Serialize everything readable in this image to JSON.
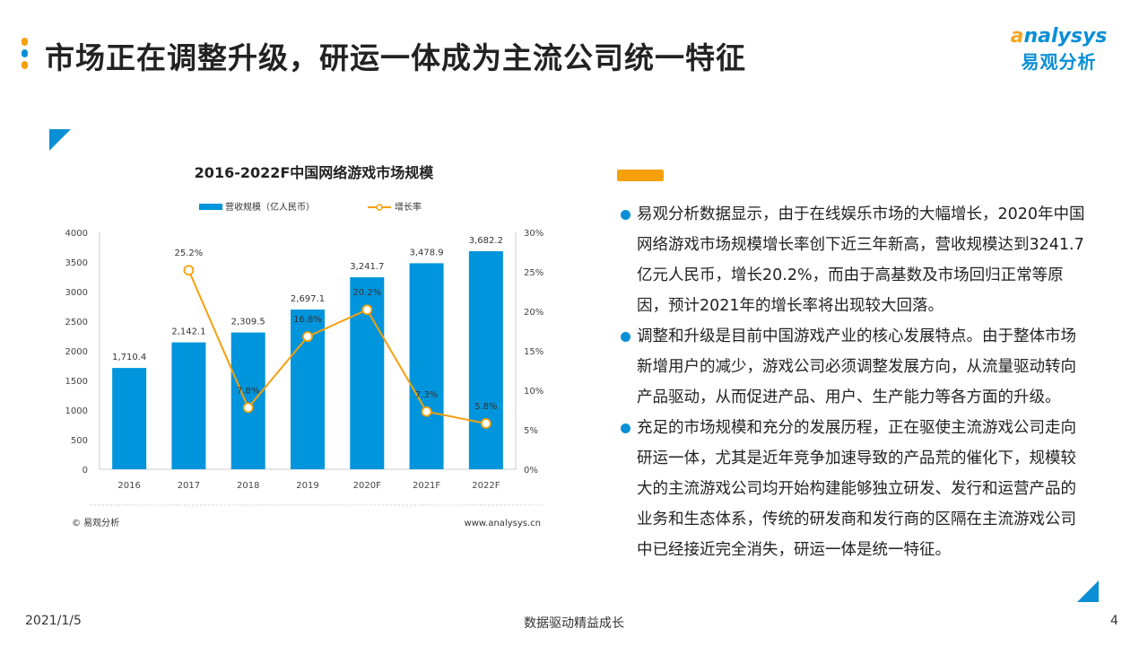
{
  "header": {
    "title": "市场正在调整升级，研运一体成为主流公司统一特征",
    "logo_en": "analysys",
    "logo_cn": "易观分析"
  },
  "colors": {
    "bar": "#0095dd",
    "line": "#f5a00a",
    "accent_blue": "#0a8fd6",
    "accent_orange": "#f5a00a"
  },
  "chart_data": {
    "type": "bar+line",
    "title": "2016-2022F中国网络游戏市场规模",
    "categories": [
      "2016",
      "2017",
      "2018",
      "2019",
      "2020F",
      "2021F",
      "2022F"
    ],
    "series": [
      {
        "name": "营收规模（亿人民币）",
        "type": "bar",
        "axis": "left",
        "values": [
          1710.4,
          2142.1,
          2309.5,
          2697.1,
          3241.7,
          3478.9,
          3682.2
        ],
        "labels": [
          "1,710.4",
          "2,142.1",
          "2,309.5",
          "2,697.1",
          "3,241.7",
          "3,478.9",
          "3,682.2"
        ]
      },
      {
        "name": "增长率",
        "type": "line",
        "axis": "right",
        "values": [
          null,
          25.2,
          7.8,
          16.8,
          20.2,
          7.3,
          5.8
        ],
        "labels": [
          "",
          "25.2%",
          "7.8%",
          "16.8%",
          "20.2%",
          "7.3%",
          "5.8%"
        ]
      }
    ],
    "left_axis": {
      "ylim": [
        0,
        4000
      ],
      "ticks": [
        "0",
        "500",
        "1000",
        "1500",
        "2000",
        "2500",
        "3000",
        "3500",
        "4000"
      ]
    },
    "right_axis": {
      "ylim": [
        0,
        30
      ],
      "ticks": [
        "0%",
        "5%",
        "10%",
        "15%",
        "20%",
        "25%",
        "30%"
      ]
    },
    "legend": "top",
    "grid": false,
    "source": "© 易观分析",
    "website": "www.analysys.cn"
  },
  "bullets": [
    "易观分析数据显示，由于在线娱乐市场的大幅增长，2020年中国网络游戏市场规模增长率创下近三年新高，营收规模达到3241.7亿元人民币，增长20.2%，而由于高基数及市场回归正常等原因，预计2021年的增长率将出现较大回落。",
    "调整和升级是目前中国游戏产业的核心发展特点。由于整体市场新增用户的减少，游戏公司必须调整发展方向，从流量驱动转向产品驱动，从而促进产品、用户、生产能力等各方面的升级。",
    "充足的市场规模和充分的发展历程，正在驱使主流游戏公司走向研运一体，尤其是近年竞争加速导致的产品荒的催化下，规模较大的主流游戏公司均开始构建能够独立研发、发行和运营产品的业务和生态体系，传统的研发商和发行商的区隔在主流游戏公司中已经接近完全消失，研运一体是统一特征。"
  ],
  "footer": {
    "date": "2021/1/5",
    "slogan": "数据驱动精益成长",
    "page": "4"
  }
}
